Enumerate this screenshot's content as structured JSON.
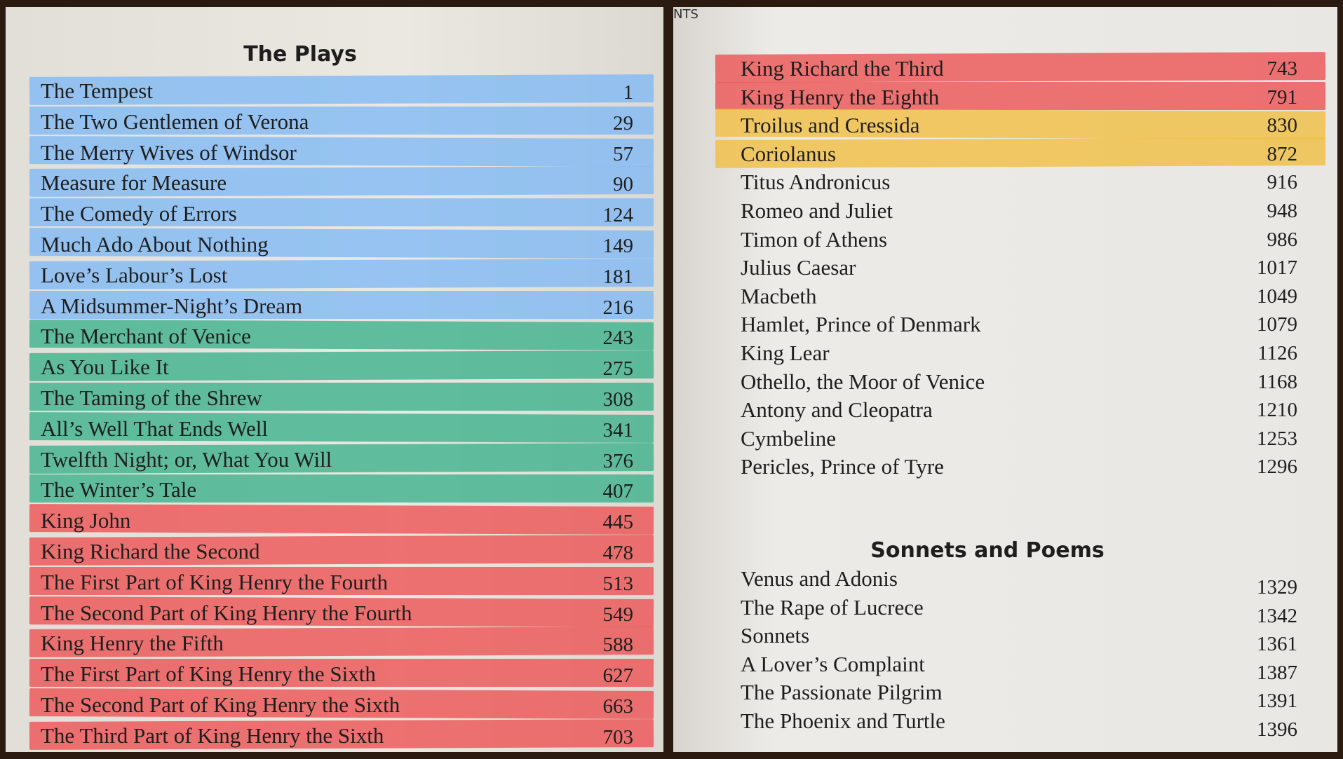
{
  "left_page": {
    "title": "The Plays",
    "entries": [
      {
        "title": "The Tempest",
        "page": 1,
        "highlight": "blue"
      },
      {
        "title": "The Two Gentlemen of Verona",
        "page": 29,
        "highlight": "blue"
      },
      {
        "title": "The Merry Wives of Windsor",
        "page": 57,
        "highlight": "blue"
      },
      {
        "title": "Measure for Measure",
        "page": 90,
        "highlight": "blue"
      },
      {
        "title": "The Comedy of Errors",
        "page": 124,
        "highlight": "blue"
      },
      {
        "title": "Much Ado About Nothing",
        "page": 149,
        "highlight": "blue"
      },
      {
        "title": "Love’s Labour’s Lost",
        "page": 181,
        "highlight": "blue"
      },
      {
        "title": "A Midsummer-Night’s Dream",
        "page": 216,
        "highlight": "blue"
      },
      {
        "title": "The Merchant of Venice",
        "page": 243,
        "highlight": "green"
      },
      {
        "title": "As You Like It",
        "page": 275,
        "highlight": "green"
      },
      {
        "title": "The Taming of the Shrew",
        "page": 308,
        "highlight": "green"
      },
      {
        "title": "All’s Well That Ends Well",
        "page": 341,
        "highlight": "green"
      },
      {
        "title": "Twelfth Night; or, What You Will",
        "page": 376,
        "highlight": "green"
      },
      {
        "title": "The Winter’s Tale",
        "page": 407,
        "highlight": "green"
      },
      {
        "title": "King John",
        "page": 445,
        "highlight": "red"
      },
      {
        "title": "King Richard the Second",
        "page": 478,
        "highlight": "red"
      },
      {
        "title": "The First Part of King Henry the Fourth",
        "page": 513,
        "highlight": "red"
      },
      {
        "title": "The Second Part of King Henry the Fourth",
        "page": 549,
        "highlight": "red"
      },
      {
        "title": "King Henry the Fifth",
        "page": 588,
        "highlight": "red"
      },
      {
        "title": "The First Part of King Henry the Sixth",
        "page": 627,
        "highlight": "red"
      },
      {
        "title": "The Second Part of King Henry the Sixth",
        "page": 663,
        "highlight": "red"
      },
      {
        "title": "The Third Part of King Henry the Sixth",
        "page": 703,
        "highlight": "red"
      }
    ]
  },
  "right_page": {
    "header": "NTS",
    "entries": [
      {
        "title": "King Richard the Third",
        "page": 743,
        "highlight": "red"
      },
      {
        "title": "King Henry the Eighth",
        "page": 791,
        "highlight": "red"
      },
      {
        "title": "Troilus and Cressida",
        "page": 830,
        "highlight": "yellow"
      },
      {
        "title": "Coriolanus",
        "page": 872,
        "highlight": "yellow"
      },
      {
        "title": "Titus Andronicus",
        "page": 916
      },
      {
        "title": "Romeo and Juliet",
        "page": 948
      },
      {
        "title": "Timon of Athens",
        "page": 986
      },
      {
        "title": "Julius Caesar",
        "page": 1017
      },
      {
        "title": "Macbeth",
        "page": 1049
      },
      {
        "title": "Hamlet, Prince of Denmark",
        "page": 1079
      },
      {
        "title": "King Lear",
        "page": 1126
      },
      {
        "title": "Othello, the Moor of Venice",
        "page": 1168
      },
      {
        "title": "Antony and Cleopatra",
        "page": 1210
      },
      {
        "title": "Cymbeline",
        "page": 1253
      },
      {
        "title": "Pericles, Prince of Tyre",
        "page": 1296
      }
    ],
    "section_title": "Sonnets and Poems",
    "section_entries": [
      {
        "title": "Venus and Adonis",
        "page": 1329
      },
      {
        "title": "The Rape of Lucrece",
        "page": 1342
      },
      {
        "title": "Sonnets",
        "page": 1361
      },
      {
        "title": "A Lover’s Complaint",
        "page": 1387
      },
      {
        "title": "The Passionate Pilgrim",
        "page": 1391
      },
      {
        "title": "The Phoenix and Turtle",
        "page": 1396
      }
    ]
  }
}
